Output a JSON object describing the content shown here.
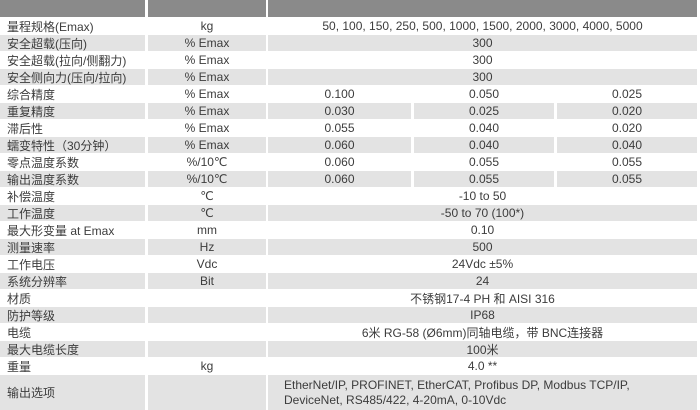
{
  "colors": {
    "header_bg": "#8a8a8a",
    "stripe_bg": "#e3e3e3",
    "row_bg": "#ffffff",
    "text": "#3c3c3c"
  },
  "table": {
    "rows": [
      {
        "label": "量程规格(Emax)",
        "unit": "kg",
        "value": "50, 100, 150, 250, 500, 1000, 1500, 2000, 3000, 4000, 5000"
      },
      {
        "label": "安全超载(压向)",
        "unit": "% Emax",
        "value": "300"
      },
      {
        "label": "安全超载(拉向/侧翻力)",
        "unit": "% Emax",
        "value": "300"
      },
      {
        "label": "安全侧向力(压向/拉向)",
        "unit": "% Emax",
        "value": "300"
      },
      {
        "label": "综合精度",
        "unit": "% Emax",
        "values": [
          "0.100",
          "0.050",
          "0.025"
        ]
      },
      {
        "label": "重复精度",
        "unit": "% Emax",
        "values": [
          "0.030",
          "0.025",
          "0.020"
        ]
      },
      {
        "label": "滞后性",
        "unit": "% Emax",
        "values": [
          "0.055",
          "0.040",
          "0.020"
        ]
      },
      {
        "label": "蠕变特性（30分钟）",
        "unit": "% Emax",
        "values": [
          "0.060",
          "0.040",
          "0.040"
        ]
      },
      {
        "label": "零点温度系数",
        "unit": "%/10℃",
        "values": [
          "0.060",
          "0.055",
          "0.055"
        ]
      },
      {
        "label": "输出温度系数",
        "unit": "%/10℃",
        "values": [
          "0.060",
          "0.055",
          "0.055"
        ]
      },
      {
        "label": "补偿温度",
        "unit": "℃",
        "value": "-10 to 50"
      },
      {
        "label": "工作温度",
        "unit": "℃",
        "value": "-50 to 70 (100*)"
      },
      {
        "label": "最大形变量 at Emax",
        "unit": "mm",
        "value": "0.10"
      },
      {
        "label": "测量速率",
        "unit": "Hz",
        "value": "500"
      },
      {
        "label": "工作电压",
        "unit": "Vdc",
        "value": "24Vdc ±5%"
      },
      {
        "label": "系统分辨率",
        "unit": "Bit",
        "value": "24"
      },
      {
        "label": "材质",
        "unit": "",
        "value": "不锈钢17-4 PH 和 AISI 316"
      },
      {
        "label": "防护等级",
        "unit": "",
        "value": "IP68"
      },
      {
        "label": "电缆",
        "unit": "",
        "value": "6米 RG-58 (Ø6mm)同轴电缆，带 BNC连接器"
      },
      {
        "label": "最大电缆长度",
        "unit": "",
        "value": "100米"
      },
      {
        "label": "重量",
        "unit": "kg",
        "value": "4.0 **"
      },
      {
        "label": "输出选项",
        "unit": "",
        "value_lines": [
          "EtherNet/IP, PROFINET, EtherCAT, Profibus DP, Modbus TCP/IP,",
          "DeviceNet, RS485/422, 4-20mA, 0-10Vdc"
        ]
      }
    ]
  }
}
